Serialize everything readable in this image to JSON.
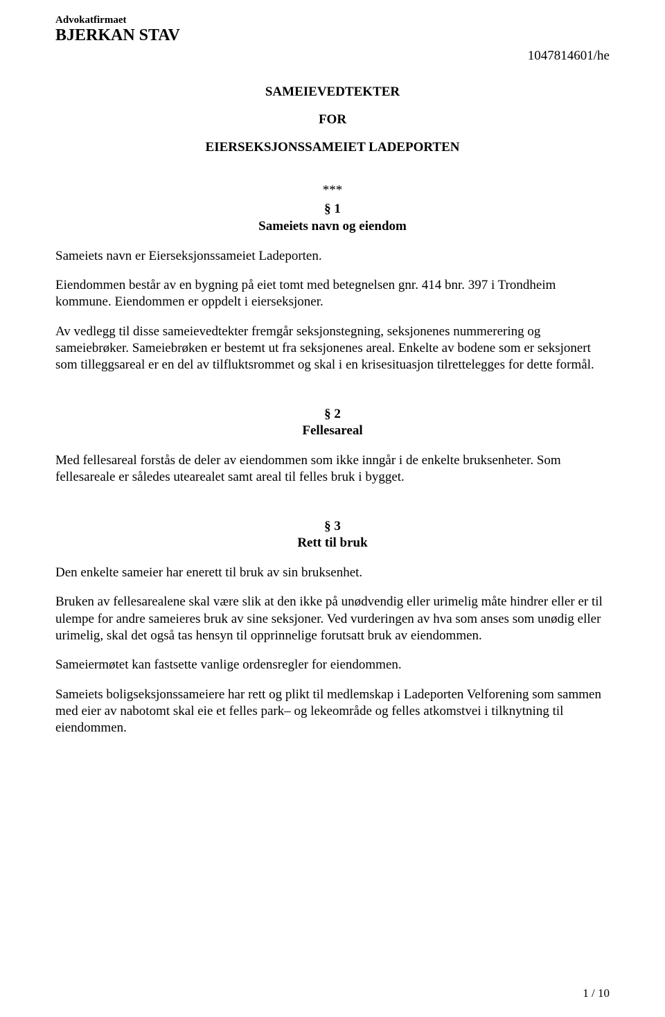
{
  "letterhead": {
    "line1": "Advokatfirmaet",
    "line2": "BJERKAN STAV"
  },
  "reference": "1047814601/he",
  "title": "SAMEIEVEDTEKTER",
  "title_for": "FOR",
  "title_subject": "EIERSEKSJONSSAMEIET LADEPORTEN",
  "stars": "***",
  "sections": {
    "s1": {
      "num": "§ 1",
      "title": "Sameiets navn og eiendom",
      "p1": "Sameiets navn er Eierseksjonssameiet Ladeporten.",
      "p2": "Eiendommen består av en bygning på eiet tomt med betegnelsen gnr. 414 bnr. 397 i Trondheim kommune. Eiendommen er oppdelt i eierseksjoner.",
      "p3": "Av vedlegg til disse sameievedtekter fremgår seksjonstegning, seksjonenes nummerering og sameiebrøker. Sameiebrøken er bestemt ut fra seksjonenes areal. Enkelte av bodene som er seksjonert som tilleggsareal er en del av tilfluktsrommet og skal i en krisesituasjon tilrettelegges for dette formål."
    },
    "s2": {
      "num": "§ 2",
      "title": "Fellesareal",
      "p1": "Med fellesareal forstås de deler av eiendommen som ikke inngår i de enkelte bruksenheter. Som fellesareale er således utearealet samt areal til felles bruk i bygget."
    },
    "s3": {
      "num": "§ 3",
      "title": "Rett til bruk",
      "p1": "Den enkelte sameier har enerett til bruk av sin bruksenhet.",
      "p2": "Bruken av fellesarealene skal være slik at den ikke på unødvendig eller urimelig måte hindrer eller er til ulempe for andre sameieres bruk av sine seksjoner. Ved vurderingen av hva som anses som unødig eller urimelig, skal det også tas hensyn til opprinnelige forutsatt bruk av eiendommen.",
      "p3": "Sameiermøtet kan fastsette vanlige ordensregler for eiendommen.",
      "p4": "Sameiets boligseksjonssameiere har rett og plikt til medlemskap i Ladeporten Velforening som sammen med eier av nabotomt skal eie et felles park– og lekeområde og felles atkomstvei i tilknytning til eiendommen."
    }
  },
  "page_number": "1 / 10"
}
